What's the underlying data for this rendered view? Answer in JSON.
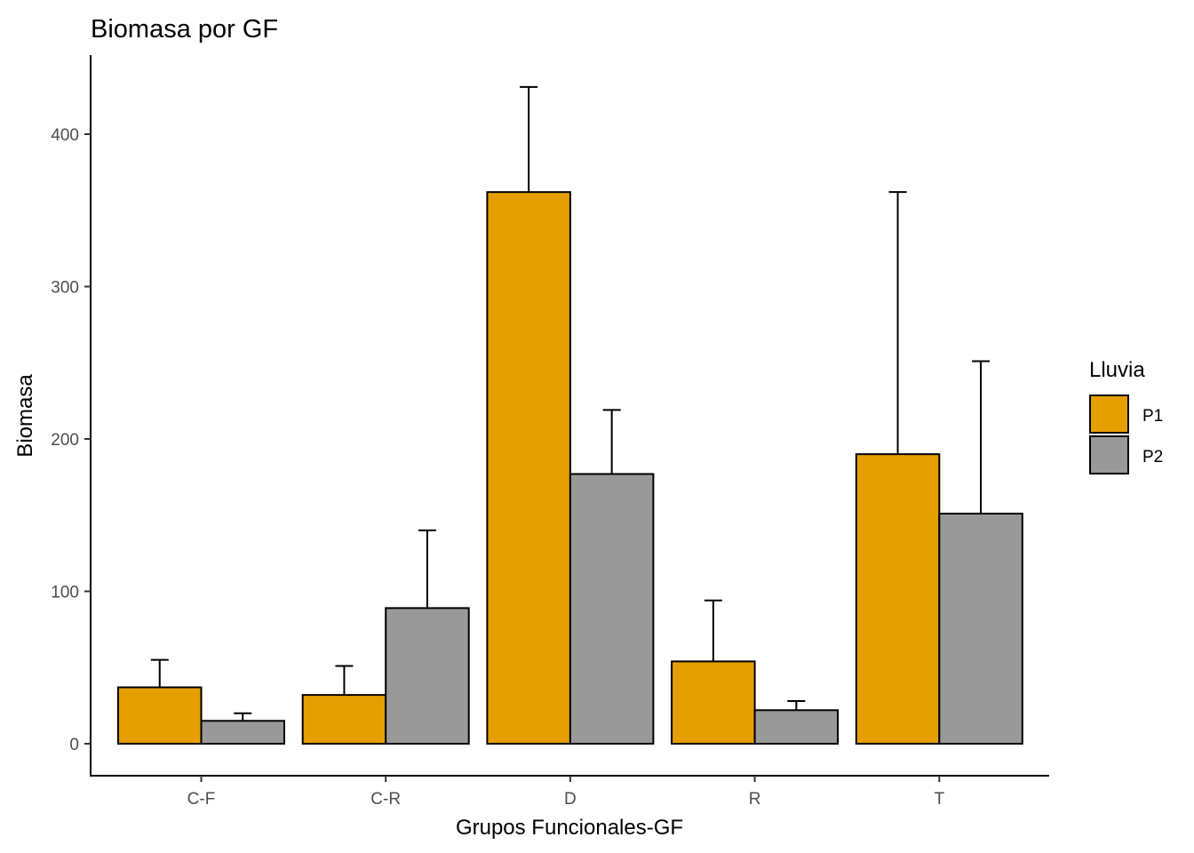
{
  "chart_data": {
    "type": "bar",
    "title": "Biomasa por GF",
    "xlabel": "Grupos Funcionales-GF",
    "ylabel": "Biomasa",
    "categories": [
      "C-F",
      "C-R",
      "D",
      "R",
      "T"
    ],
    "ylim": [
      -20,
      452
    ],
    "yticks": [
      0,
      100,
      200,
      300,
      400
    ],
    "grid": false,
    "legend": {
      "title": "Lluvia",
      "position": "right"
    },
    "series": [
      {
        "name": "P1",
        "color": "#E69F00",
        "values": [
          37,
          32,
          362,
          54,
          190
        ],
        "error_upper": [
          55,
          51,
          431,
          94,
          362
        ]
      },
      {
        "name": "P2",
        "color": "#999999",
        "values": [
          15,
          89,
          177,
          22,
          151
        ],
        "error_upper": [
          20,
          140,
          219,
          28,
          251
        ]
      }
    ]
  }
}
